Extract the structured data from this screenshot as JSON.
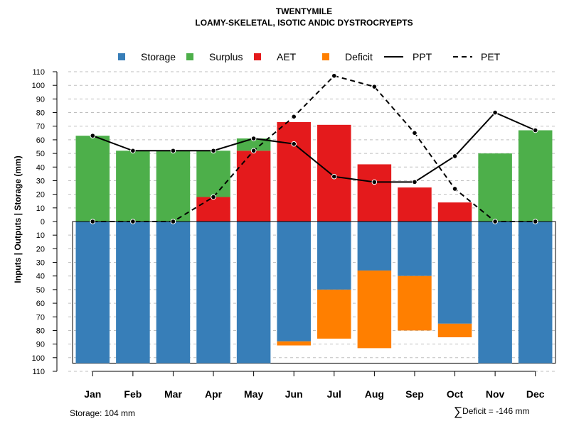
{
  "title": "TWENTYMILE",
  "subtitle": "LOAMY-SKELETAL, ISOTIC ANDIC DYSTROCRYEPTS",
  "ylabel": "Inputs | Outputs | Storage    (mm)",
  "footer": {
    "storage_text": "Storage: 104 mm",
    "deficit_symbol": "∑",
    "deficit_text": "Deficit = -146 mm"
  },
  "colors": {
    "storage": "#377EB8",
    "surplus": "#4DAF4A",
    "aet": "#E41A1C",
    "deficit": "#FF7F00",
    "grid": "#bfbfbf"
  },
  "chart_data": {
    "type": "bar",
    "categories": [
      "Jan",
      "Feb",
      "Mar",
      "Apr",
      "May",
      "Jun",
      "Jul",
      "Aug",
      "Sep",
      "Oct",
      "Nov",
      "Dec"
    ],
    "ylim": [
      -110,
      110
    ],
    "yticks": [
      "110",
      "100",
      "90",
      "80",
      "70",
      "60",
      "50",
      "40",
      "30",
      "20",
      "10",
      "0",
      "10",
      "20",
      "30",
      "40",
      "50",
      "60",
      "70",
      "80",
      "90",
      "100",
      "110"
    ],
    "storage_capacity": 104,
    "legend": {
      "position": "top",
      "entries": [
        {
          "label": "Storage",
          "kind": "box",
          "color": "#377EB8"
        },
        {
          "label": "Surplus",
          "kind": "box",
          "color": "#4DAF4A"
        },
        {
          "label": "AET",
          "kind": "box",
          "color": "#E41A1C"
        },
        {
          "label": "Deficit",
          "kind": "box",
          "color": "#FF7F00"
        },
        {
          "label": "PPT",
          "kind": "line",
          "dash": "solid"
        },
        {
          "label": "PET",
          "kind": "line",
          "dash": "dashed"
        }
      ]
    },
    "series": {
      "surplus": [
        63,
        52,
        52,
        34,
        9,
        0,
        0,
        0,
        0,
        0,
        50,
        67
      ],
      "aet": [
        0,
        0,
        0,
        18,
        52,
        73,
        71,
        42,
        25,
        14,
        0,
        0
      ],
      "storage": [
        104,
        104,
        104,
        104,
        104,
        88,
        50,
        36,
        40,
        75,
        104,
        104
      ],
      "deficit": [
        0,
        0,
        0,
        0,
        0,
        3,
        36,
        57,
        40,
        10,
        0,
        0
      ],
      "ppt": [
        63,
        52,
        52,
        52,
        61,
        57,
        33,
        29,
        29,
        48,
        80,
        67
      ],
      "pet": [
        0,
        0,
        0,
        18,
        52,
        77,
        107,
        99,
        65,
        24,
        0,
        0
      ]
    }
  }
}
